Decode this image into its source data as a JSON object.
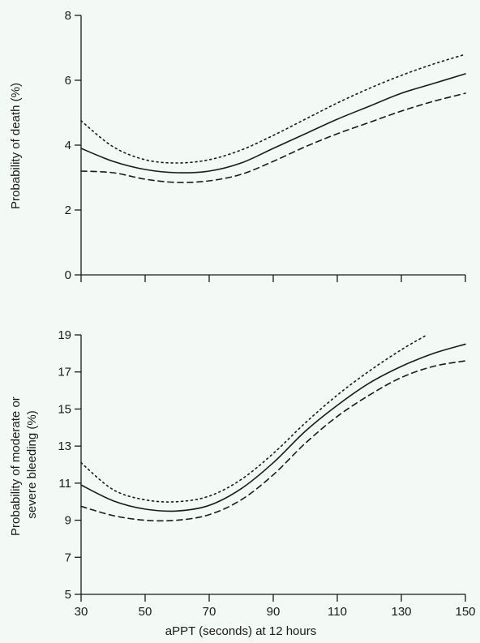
{
  "chart_data": [
    {
      "type": "line",
      "ylabel": "Probability of death (%)",
      "xlabel": "",
      "xlim": [
        30,
        150
      ],
      "ylim": [
        0,
        8
      ],
      "x_ticks": [
        30,
        50,
        70,
        90,
        110,
        130,
        150
      ],
      "x_tick_labels_shown": false,
      "y_ticks": [
        0,
        2,
        4,
        6,
        8
      ],
      "grid": false,
      "legend": "none",
      "series": [
        {
          "style": "solid",
          "x": [
            30,
            40,
            50,
            60,
            70,
            80,
            90,
            100,
            110,
            120,
            130,
            140,
            150
          ],
          "y": [
            3.9,
            3.5,
            3.25,
            3.15,
            3.2,
            3.45,
            3.9,
            4.35,
            4.8,
            5.2,
            5.6,
            5.9,
            6.2
          ]
        },
        {
          "style": "dotted",
          "x": [
            30,
            40,
            50,
            60,
            70,
            80,
            90,
            100,
            110,
            120,
            130,
            140,
            150
          ],
          "y": [
            4.75,
            3.95,
            3.55,
            3.45,
            3.55,
            3.85,
            4.3,
            4.8,
            5.3,
            5.75,
            6.15,
            6.5,
            6.8
          ]
        },
        {
          "style": "dashed",
          "x": [
            30,
            40,
            50,
            60,
            70,
            80,
            90,
            100,
            110,
            120,
            130,
            140,
            150
          ],
          "y": [
            3.2,
            3.15,
            2.95,
            2.85,
            2.9,
            3.1,
            3.5,
            3.95,
            4.35,
            4.7,
            5.05,
            5.35,
            5.6
          ]
        }
      ]
    },
    {
      "type": "line",
      "ylabel": "Probability of moderate or severe bleeding (%)",
      "ylabel_lines": [
        "Probability of moderate or",
        "severe bleeding (%)"
      ],
      "xlabel": "aPPT (seconds) at 12 hours",
      "xlim": [
        30,
        150
      ],
      "ylim": [
        5,
        19
      ],
      "x_ticks": [
        30,
        50,
        70,
        90,
        110,
        130,
        150
      ],
      "x_tick_labels_shown": true,
      "y_ticks": [
        5,
        7,
        9,
        11,
        13,
        15,
        17,
        19
      ],
      "grid": false,
      "legend": "none",
      "series": [
        {
          "style": "solid",
          "x": [
            30,
            40,
            50,
            60,
            70,
            80,
            90,
            100,
            110,
            120,
            130,
            140,
            150
          ],
          "y": [
            10.9,
            10.05,
            9.6,
            9.5,
            9.8,
            10.7,
            12.1,
            13.8,
            15.2,
            16.4,
            17.3,
            18.0,
            18.5
          ]
        },
        {
          "style": "dotted",
          "x": [
            30,
            40,
            50,
            60,
            70,
            80,
            90,
            100,
            110,
            120,
            130,
            138
          ],
          "y": [
            12.1,
            10.65,
            10.1,
            10.0,
            10.3,
            11.2,
            12.6,
            14.25,
            15.75,
            17.05,
            18.2,
            19.0
          ]
        },
        {
          "style": "dashed",
          "x": [
            30,
            40,
            50,
            60,
            70,
            80,
            90,
            100,
            110,
            120,
            130,
            140,
            150
          ],
          "y": [
            9.75,
            9.25,
            9.0,
            9.0,
            9.3,
            10.1,
            11.45,
            13.15,
            14.6,
            15.75,
            16.7,
            17.3,
            17.6
          ]
        }
      ]
    }
  ]
}
